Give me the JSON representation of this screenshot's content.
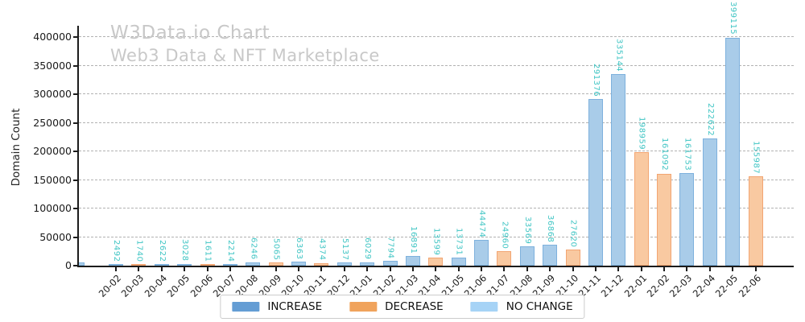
{
  "title": "W3Data.io Chart",
  "subtitle": "Web3 Data & NFT Marketplace",
  "colors": {
    "bar_increase_fill": "#a9cce9",
    "bar_increase_edge": "#7eb1dd",
    "bar_decrease_fill": "#f9c9a1",
    "bar_decrease_edge": "#f2a572",
    "legend_increase": "#649dd4",
    "legend_decrease": "#f0a35c",
    "legend_nochange": "#a6d3f6",
    "value_label": "#40c5c4",
    "title_gray": "#c8c8c8",
    "grid": "#b2b2b2"
  },
  "legend": {
    "items": [
      {
        "label": "INCREASE",
        "type": "increase"
      },
      {
        "label": "DECREASE",
        "type": "decrease"
      },
      {
        "label": "NO CHANGE",
        "type": "nochange"
      }
    ]
  },
  "chart_data": {
    "type": "bar",
    "title": "W3Data.io Chart",
    "subtitle": "Web3 Data & NFT Marketplace",
    "xlabel": "",
    "ylabel": "Domain Count",
    "ylim": [
      0,
      420000
    ],
    "yticks": [
      0,
      50000,
      100000,
      150000,
      200000,
      250000,
      300000,
      350000,
      400000
    ],
    "grid": true,
    "grid_style": "dashed",
    "legend_position": "bottom-center",
    "value_labels_rotated": true,
    "categories": [
      "20-02",
      "20-03",
      "20-04",
      "20-05",
      "20-06",
      "20-07",
      "20-08",
      "20-09",
      "20-10",
      "20-11",
      "20-12",
      "21-01",
      "21-02",
      "21-03",
      "21-04",
      "21-05",
      "21-06",
      "21-07",
      "21-08",
      "21-09",
      "21-10",
      "21-11",
      "21-12",
      "22-01",
      "22-02",
      "22-03",
      "22-04",
      "22-05",
      "22-06"
    ],
    "bars": [
      {
        "label": "20-02",
        "value": 2492,
        "type": "increase"
      },
      {
        "label": "20-03",
        "value": 1740,
        "type": "decrease"
      },
      {
        "label": "20-04",
        "value": 2622,
        "type": "increase"
      },
      {
        "label": "20-05",
        "value": 3028,
        "type": "increase"
      },
      {
        "label": "20-06",
        "value": 1611,
        "type": "decrease"
      },
      {
        "label": "20-07",
        "value": 2214,
        "type": "increase"
      },
      {
        "label": "20-08",
        "value": 6246,
        "type": "increase"
      },
      {
        "label": "20-09",
        "value": 5065,
        "type": "decrease"
      },
      {
        "label": "20-10",
        "value": 6363,
        "type": "increase"
      },
      {
        "label": "20-11",
        "value": 4374,
        "type": "decrease"
      },
      {
        "label": "20-12",
        "value": 5137,
        "type": "increase"
      },
      {
        "label": "21-01",
        "value": 6029,
        "type": "increase"
      },
      {
        "label": "21-02",
        "value": 7794,
        "type": "increase"
      },
      {
        "label": "21-03",
        "value": 16891,
        "type": "increase"
      },
      {
        "label": "21-04",
        "value": 13599,
        "type": "decrease"
      },
      {
        "label": "21-05",
        "value": 13731,
        "type": "increase"
      },
      {
        "label": "21-06",
        "value": 44474,
        "type": "increase"
      },
      {
        "label": "21-07",
        "value": 24960,
        "type": "decrease"
      },
      {
        "label": "21-08",
        "value": 33569,
        "type": "increase"
      },
      {
        "label": "21-09",
        "value": 36868,
        "type": "increase"
      },
      {
        "label": "21-10",
        "value": 27620,
        "type": "decrease"
      },
      {
        "label": "21-11",
        "value": 291376,
        "type": "increase"
      },
      {
        "label": "21-12",
        "value": 335144,
        "type": "increase"
      },
      {
        "label": "22-01",
        "value": 198959,
        "type": "decrease"
      },
      {
        "label": "22-02",
        "value": 161092,
        "type": "decrease"
      },
      {
        "label": "22-03",
        "value": 161753,
        "type": "increase"
      },
      {
        "label": "22-04",
        "value": 222622,
        "type": "increase"
      },
      {
        "label": "22-05",
        "value": 399115,
        "type": "increase"
      },
      {
        "label": "22-06",
        "value": 155987,
        "type": "decrease"
      }
    ],
    "clipped_partial_bar_at_left_edge": {
      "type": "increase",
      "note": "small unlabeled blue bar clipped by left axis"
    }
  }
}
